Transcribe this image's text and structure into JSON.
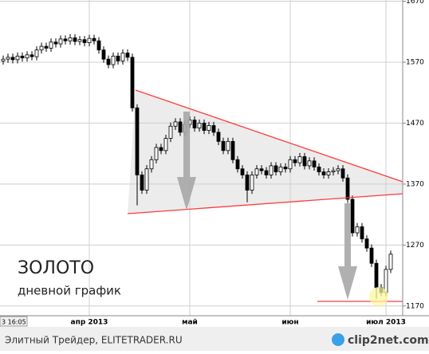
{
  "chart_data": {
    "type": "candlestick",
    "title": "ЗОЛОТО",
    "subtitle": "дневной график",
    "corner_label": "3 16:05",
    "categories": [
      null,
      null,
      null,
      null,
      null,
      null,
      null,
      null,
      null,
      null,
      null,
      null,
      null,
      null,
      null,
      null,
      null,
      null,
      "апр 2013",
      null,
      null,
      null,
      null,
      null,
      null,
      null,
      null,
      null,
      null,
      null,
      null,
      null,
      null,
      null,
      null,
      null,
      null,
      null,
      null,
      "май",
      null,
      null,
      null,
      null,
      null,
      null,
      null,
      null,
      null,
      null,
      null,
      null,
      null,
      null,
      null,
      null,
      null,
      null,
      null,
      null,
      "июн",
      null,
      null,
      null,
      null,
      null,
      null,
      null,
      null,
      null,
      null,
      null,
      null,
      null,
      null,
      null,
      null,
      null,
      null,
      null,
      "июл 2013",
      null
    ],
    "open": [
      1572,
      1575,
      1578,
      1574,
      1580,
      1577,
      1582,
      1579,
      1590,
      1596,
      1593,
      1603,
      1600,
      1608,
      1605,
      1610,
      1604,
      1607,
      1602,
      1609,
      1605,
      1590,
      1575,
      1566,
      1580,
      1572,
      1585,
      1578,
      1495,
      1385,
      1360,
      1395,
      1410,
      1430,
      1425,
      1445,
      1465,
      1472,
      1455,
      1468,
      1475,
      1462,
      1470,
      1458,
      1466,
      1455,
      1440,
      1425,
      1440,
      1410,
      1395,
      1385,
      1360,
      1385,
      1395,
      1392,
      1385,
      1400,
      1390,
      1398,
      1395,
      1410,
      1405,
      1415,
      1400,
      1408,
      1398,
      1390,
      1385,
      1390,
      1392,
      1395,
      1380,
      1345,
      1290,
      1300,
      1280,
      1265,
      1240,
      1200,
      1192,
      1230
    ],
    "high": [
      1581,
      1584,
      1584,
      1586,
      1586,
      1588,
      1588,
      1596,
      1602,
      1602,
      1609,
      1609,
      1614,
      1614,
      1616,
      1616,
      1613,
      1613,
      1615,
      1615,
      1611,
      1596,
      1581,
      1586,
      1586,
      1591,
      1591,
      1584,
      1501,
      1391,
      1401,
      1416,
      1436,
      1436,
      1451,
      1471,
      1478,
      1478,
      1474,
      1481,
      1481,
      1476,
      1476,
      1472,
      1472,
      1461,
      1446,
      1446,
      1446,
      1416,
      1401,
      1391,
      1391,
      1401,
      1401,
      1398,
      1406,
      1406,
      1404,
      1404,
      1416,
      1416,
      1421,
      1421,
      1414,
      1414,
      1404,
      1396,
      1396,
      1398,
      1401,
      1401,
      1386,
      1351,
      1306,
      1306,
      1286,
      1271,
      1246,
      1206,
      1236,
      1261
    ],
    "low": [
      1566,
      1569,
      1568,
      1568,
      1571,
      1571,
      1573,
      1573,
      1584,
      1587,
      1587,
      1594,
      1594,
      1599,
      1599,
      1598,
      1598,
      1596,
      1596,
      1599,
      1584,
      1569,
      1560,
      1560,
      1566,
      1566,
      1572,
      1489,
      1335,
      1354,
      1354,
      1389,
      1404,
      1419,
      1419,
      1439,
      1459,
      1449,
      1449,
      1462,
      1456,
      1456,
      1452,
      1452,
      1449,
      1434,
      1419,
      1419,
      1404,
      1389,
      1379,
      1340,
      1354,
      1379,
      1386,
      1379,
      1379,
      1384,
      1384,
      1389,
      1389,
      1399,
      1399,
      1394,
      1394,
      1392,
      1384,
      1379,
      1379,
      1384,
      1386,
      1374,
      1339,
      1284,
      1284,
      1274,
      1259,
      1234,
      1182,
      1186,
      1186,
      1224
    ],
    "close": [
      1575,
      1578,
      1574,
      1580,
      1577,
      1582,
      1579,
      1590,
      1596,
      1593,
      1603,
      1600,
      1608,
      1605,
      1610,
      1604,
      1607,
      1602,
      1609,
      1605,
      1590,
      1575,
      1566,
      1580,
      1572,
      1585,
      1578,
      1495,
      1385,
      1360,
      1395,
      1410,
      1430,
      1425,
      1445,
      1465,
      1472,
      1455,
      1468,
      1475,
      1462,
      1470,
      1458,
      1466,
      1455,
      1440,
      1425,
      1440,
      1410,
      1395,
      1385,
      1360,
      1385,
      1395,
      1392,
      1385,
      1400,
      1390,
      1398,
      1395,
      1410,
      1405,
      1415,
      1400,
      1408,
      1398,
      1390,
      1385,
      1390,
      1392,
      1395,
      1380,
      1345,
      1290,
      1300,
      1280,
      1265,
      1240,
      1200,
      1192,
      1230,
      1255
    ],
    "up_color": "#ffffff",
    "down_color": "#000000",
    "ylim": [
      1154,
      1672
    ],
    "yticks": [
      1170,
      1270,
      1370,
      1470,
      1570,
      1670
    ],
    "grid": true
  },
  "footer": {
    "source": "Элитный Трейдер, ELITETRADER.RU",
    "logo": "clip2net.com"
  }
}
